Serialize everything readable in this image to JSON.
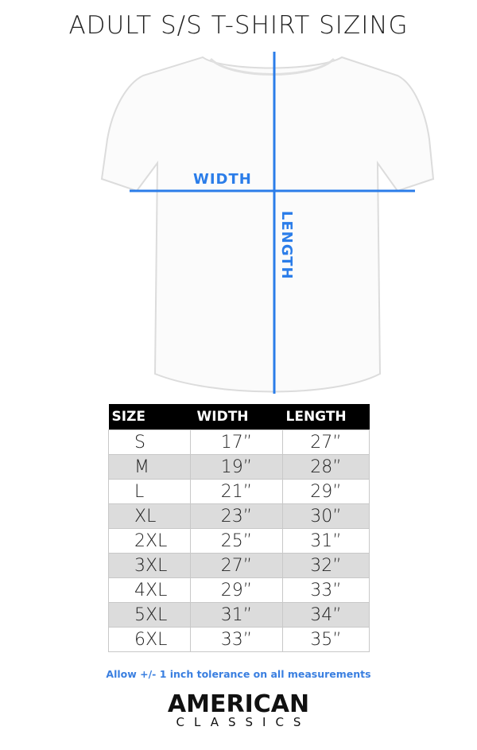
{
  "title": "ADULT S/S T-SHIRT SIZING",
  "diagram": {
    "width_label": "WIDTH",
    "length_label": "LENGTH",
    "accent_color": "#2b7de9"
  },
  "table": {
    "headers": [
      "SIZE",
      "WIDTH",
      "LENGTH"
    ],
    "rows": [
      [
        "S",
        "17”",
        "27”"
      ],
      [
        "M",
        "19”",
        "28”"
      ],
      [
        "L",
        "21”",
        "29”"
      ],
      [
        "XL",
        "23”",
        "30”"
      ],
      [
        "2XL",
        "25”",
        "31”"
      ],
      [
        "3XL",
        "27”",
        "32”"
      ],
      [
        "4XL",
        "29”",
        "33”"
      ],
      [
        "5XL",
        "31”",
        "34”"
      ],
      [
        "6XL",
        "33”",
        "35”"
      ]
    ]
  },
  "note": "Allow +/- 1 inch tolerance on all measurements",
  "brand": {
    "line1": "AMERICAN",
    "line2": "CLASSICS"
  }
}
